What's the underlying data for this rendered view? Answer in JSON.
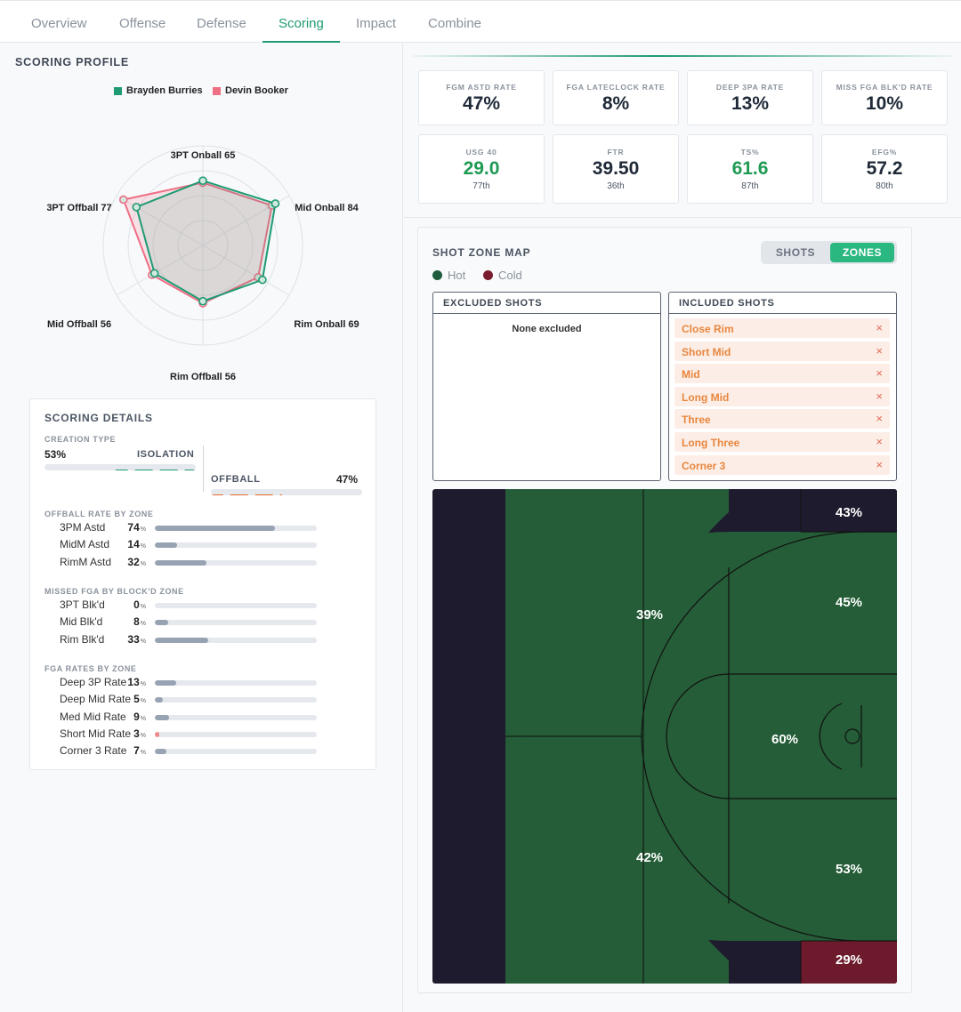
{
  "tabs": [
    "Overview",
    "Offense",
    "Defense",
    "Scoring",
    "Impact",
    "Combine"
  ],
  "active_tab": "Scoring",
  "scoring_profile": {
    "title": "SCORING PROFILE",
    "legend": [
      {
        "name": "Brayden Burries",
        "color": "#1f9a73"
      },
      {
        "name": "Devin Booker",
        "color": "#ef6f85"
      }
    ],
    "axes": [
      "3PT Onball 65",
      "Mid Onball 84",
      "Rim Onball 69",
      "Rim Offball 56",
      "Mid Offball 56",
      "3PT Offball 77"
    ],
    "series": [
      {
        "name": "Brayden Burries",
        "values": [
          65,
          84,
          69,
          56,
          56,
          77
        ]
      },
      {
        "name": "Devin Booker",
        "values": [
          63,
          80,
          64,
          58,
          59,
          92
        ]
      }
    ],
    "max": 100
  },
  "details": {
    "title": "SCORING DETAILS",
    "creation_type_label": "CREATION TYPE",
    "isolation_pct": "53%",
    "isolation_label": "ISOLATION",
    "isolation_value": 53,
    "offball_label": "OFFBALL",
    "offball_pct": "47%",
    "offball_value": 47,
    "groups": [
      {
        "title": "OFFBALL RATE BY ZONE",
        "rows": [
          {
            "label": "3PM Astd",
            "value": "74",
            "pct": 74,
            "color": "#97a3b2"
          },
          {
            "label": "MidM Astd",
            "value": "14",
            "pct": 14,
            "color": "#97a3b2"
          },
          {
            "label": "RimM Astd",
            "value": "32",
            "pct": 32,
            "color": "#97a3b2"
          }
        ]
      },
      {
        "title": "MISSED FGA BY BLOCK'D ZONE",
        "rows": [
          {
            "label": "3PT Blk'd",
            "value": "0",
            "pct": 0,
            "color": "#97a3b2"
          },
          {
            "label": "Mid Blk'd",
            "value": "8",
            "pct": 8,
            "color": "#97a3b2"
          },
          {
            "label": "Rim Blk'd",
            "value": "33",
            "pct": 33,
            "color": "#97a3b2"
          }
        ]
      },
      {
        "title": "FGA RATES BY ZONE",
        "rows": [
          {
            "label": "Deep 3P Rate",
            "value": "13",
            "pct": 13,
            "color": "#97a3b2"
          },
          {
            "label": "Deep Mid Rate",
            "value": "5",
            "pct": 5,
            "color": "#97a3b2"
          },
          {
            "label": "Med Mid Rate",
            "value": "9",
            "pct": 9,
            "color": "#97a3b2"
          },
          {
            "label": "Short Mid Rate",
            "value": "3",
            "pct": 3,
            "color": "#f08a8a"
          },
          {
            "label": "Corner 3 Rate",
            "value": "7",
            "pct": 7,
            "color": "#97a3b2"
          }
        ]
      }
    ],
    "pct_unit": "%"
  },
  "stats_row1": [
    {
      "label": "FGM ASTD RATE",
      "value": "47%"
    },
    {
      "label": "FGA LATECLOCK RATE",
      "value": "8%"
    },
    {
      "label": "DEEP 3PA RATE",
      "value": "13%"
    },
    {
      "label": "MISS FGA BLK'D RATE",
      "value": "10%"
    }
  ],
  "stats_row2": [
    {
      "label": "USG 40",
      "value": "29.0",
      "rank": "77th",
      "highlight": true
    },
    {
      "label": "FTR",
      "value": "39.50",
      "rank": "36th",
      "highlight": false
    },
    {
      "label": "TS%",
      "value": "61.6",
      "rank": "87th",
      "highlight": true
    },
    {
      "label": "EFG%",
      "value": "57.2",
      "rank": "80th",
      "highlight": false
    }
  ],
  "shot_zone": {
    "title": "SHOT ZONE MAP",
    "toggle": {
      "shots": "SHOTS",
      "zones": "ZONES",
      "active": "ZONES"
    },
    "hot_label": "Hot",
    "cold_label": "Cold",
    "hot_color": "#1f5c3c",
    "cold_color": "#7a1c2e",
    "excluded_title": "EXCLUDED SHOTS",
    "excluded_empty": "None excluded",
    "included_title": "INCLUDED SHOTS",
    "included": [
      "Close Rim",
      "Short Mid",
      "Mid",
      "Long Mid",
      "Three",
      "Long Three",
      "Corner 3"
    ],
    "remove_icon": "×",
    "zones": {
      "corner_top": "43%",
      "wing_top_three": "39%",
      "mid_top": "45%",
      "paint": "60%",
      "wing_bottom_three": "42%",
      "mid_bottom": "53%",
      "corner_bottom": "29%"
    }
  }
}
